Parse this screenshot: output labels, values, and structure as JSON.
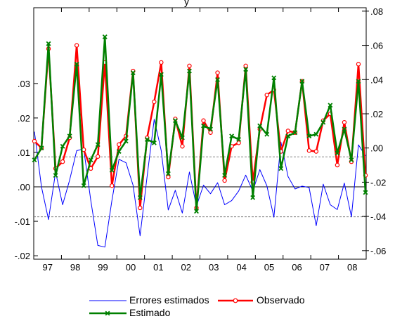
{
  "chart_data": {
    "type": "line",
    "title_fragment": "y",
    "x_ticks": [
      "97",
      "98",
      "99",
      "00",
      "01",
      "02",
      "03",
      "04",
      "05",
      "06",
      "07",
      "08"
    ],
    "left_ticks": [
      ".03",
      ".02",
      ".01",
      ".00",
      "-.01",
      "-.02"
    ],
    "left_tick_values": [
      0.03,
      0.02,
      0.01,
      0.0,
      -0.01,
      -0.02
    ],
    "left_ylim": [
      -0.021,
      0.052
    ],
    "right_ticks": [
      ".08",
      ".06",
      ".04",
      ".02",
      ".00",
      "-.02",
      "-.04",
      "-.06"
    ],
    "right_tick_values": [
      0.08,
      0.06,
      0.04,
      0.02,
      0.0,
      -0.02,
      -0.04,
      -0.06
    ],
    "right_ylim": [
      -0.065,
      0.082
    ],
    "x_start": 1997.0,
    "x_step": 0.25,
    "band_lines": [
      0.0087,
      -0.0087
    ],
    "series": [
      {
        "name": "Errores estimados",
        "axis": "left",
        "color": "#0000ff",
        "values": [
          0.016,
          0.0,
          -0.0095,
          0.0043,
          -0.0052,
          0.002,
          0.0105,
          0.011,
          -0.004,
          -0.017,
          -0.0175,
          -0.004,
          0.008,
          0.007,
          0.0005,
          -0.0142,
          0.003,
          0.0196,
          0.0105,
          -0.0067,
          -0.001,
          -0.0076,
          0.0043,
          -0.0056,
          0.0005,
          -0.002,
          0.0012,
          -0.0052,
          -0.004,
          -0.0012,
          0.0034,
          -0.0012,
          0.005,
          0.0003,
          -0.0088,
          0.013,
          0.003,
          -0.0006,
          0.0002,
          -0.0002,
          -0.0113,
          0.0008,
          -0.0052,
          -0.0066,
          0.0011,
          -0.0087,
          0.0122,
          0.009
        ]
      },
      {
        "name": "Observado",
        "axis": "right",
        "color": "#ff0000",
        "values": [
          0.004,
          0.0,
          0.058,
          -0.012,
          -0.008,
          0.006,
          0.06,
          -0.001,
          -0.012,
          -0.005,
          0.05,
          -0.022,
          0.002,
          0.007,
          0.045,
          -0.035,
          0.006,
          0.027,
          0.05,
          -0.017,
          0.017,
          0.001,
          0.048,
          -0.035,
          0.016,
          0.009,
          0.044,
          -0.019,
          0.001,
          0.003,
          0.048,
          -0.02,
          0.011,
          0.031,
          0.034,
          -0.002,
          0.01,
          0.009,
          0.039,
          -0.0015,
          -0.002,
          0.016,
          0.02,
          -0.01,
          0.015,
          -0.008,
          0.049,
          -0.016
        ]
      },
      {
        "name": "Estimado",
        "axis": "right",
        "color": "#008000",
        "values": [
          -0.007,
          0.0,
          0.061,
          -0.016,
          0.001,
          0.007,
          0.049,
          -0.022,
          -0.007,
          0.002,
          0.065,
          -0.013,
          -0.002,
          0.004,
          0.044,
          -0.029,
          0.005,
          0.003,
          0.043,
          -0.015,
          0.016,
          0.006,
          0.045,
          -0.037,
          0.013,
          0.011,
          0.04,
          -0.016,
          0.007,
          0.005,
          0.046,
          -0.029,
          0.013,
          0.008,
          0.041,
          -0.012,
          0.007,
          0.009,
          0.039,
          0.007,
          0.008,
          0.015,
          0.025,
          -0.003,
          0.011,
          -0.007,
          0.039,
          -0.026
        ]
      }
    ]
  },
  "legend": {
    "errores": "Errores estimados",
    "observado": "Observado",
    "estimado": "Estimado"
  }
}
